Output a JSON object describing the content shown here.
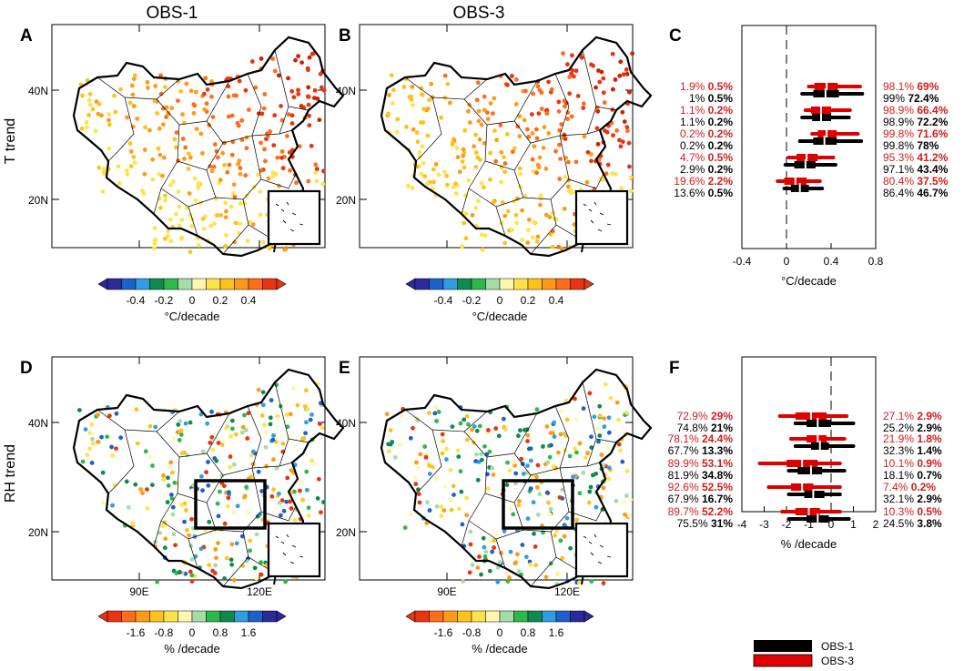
{
  "panel_titles": {
    "obs1": "OBS-1",
    "obs3": "OBS-3"
  },
  "panel_labels": {
    "A": "A",
    "B": "B",
    "C": "C",
    "D": "D",
    "E": "E",
    "F": "F"
  },
  "row_labels": {
    "t": "T trend",
    "rh": "RH trend"
  },
  "map_ticks": {
    "lat40": "40N",
    "lat20": "20N",
    "lon90": "90E",
    "lon120": "120E"
  },
  "colorbar_t": {
    "ticks": [
      "-0.4",
      "-0.2",
      "0",
      "0.2",
      "0.4"
    ],
    "unit": "°C/decade",
    "colors": [
      "#2a2a9a",
      "#1f5fc9",
      "#2f9de0",
      "#0f8a4f",
      "#2db84a",
      "#a5dcaa",
      "#fff7b0",
      "#ffe34a",
      "#ffc21a",
      "#ff9a18",
      "#ff6d1a",
      "#e8350f"
    ]
  },
  "colorbar_rh": {
    "ticks": [
      "-1.6",
      "-0.8",
      "0",
      "0.8",
      "1.6"
    ],
    "unit": "% /decade",
    "colors": [
      "#e8350f",
      "#ff6d1a",
      "#ff9a18",
      "#ffc21a",
      "#ffe34a",
      "#fff7b0",
      "#a5dcaa",
      "#2db84a",
      "#0f8a4f",
      "#2f9de0",
      "#1f5fc9",
      "#2a2a9a"
    ]
  },
  "legend": {
    "obs1": "OBS-1",
    "obs3": "OBS-3",
    "obs1_color": "#000000",
    "obs3_color": "#e00000"
  },
  "chart_data": [
    {
      "panel": "C",
      "type": "interval",
      "xlabel": "°C/decade",
      "xlim": [
        -0.4,
        0.8
      ],
      "xticks": [
        "-0.4",
        "0",
        "0.4",
        "0.8"
      ],
      "series": [
        {
          "name": "OBS-3",
          "color": "#e00000",
          "boxes": [
            {
              "whisker": [
                0.2,
                0.66
              ],
              "box": [
                0.25,
                0.46
              ],
              "median": 0.36
            },
            {
              "whisker": [
                0.17,
                0.57
              ],
              "box": [
                0.22,
                0.4
              ],
              "median": 0.31
            },
            {
              "whisker": [
                0.23,
                0.64
              ],
              "box": [
                0.28,
                0.45
              ],
              "median": 0.36
            },
            {
              "whisker": [
                0.02,
                0.42
              ],
              "box": [
                0.09,
                0.28
              ],
              "median": 0.18
            },
            {
              "whisker": [
                -0.08,
                0.3
              ],
              "box": [
                -0.02,
                0.18
              ],
              "median": 0.08
            }
          ]
        },
        {
          "name": "OBS-1",
          "color": "#000000",
          "boxes": [
            {
              "whisker": [
                0.14,
                0.68
              ],
              "box": [
                0.24,
                0.47
              ],
              "median": 0.35
            },
            {
              "whisker": [
                0.14,
                0.56
              ],
              "box": [
                0.23,
                0.4
              ],
              "median": 0.31
            },
            {
              "whisker": [
                0.12,
                0.67
              ],
              "box": [
                0.24,
                0.45
              ],
              "median": 0.34
            },
            {
              "whisker": [
                -0.01,
                0.44
              ],
              "box": [
                0.07,
                0.26
              ],
              "median": 0.17
            },
            {
              "whisker": [
                -0.02,
                0.32
              ],
              "box": [
                0.04,
                0.2
              ],
              "median": 0.12
            }
          ]
        }
      ],
      "left_labels": [
        {
          "red_a": "1.9%",
          "red_b": "0.5%",
          "black_a": "1%",
          "black_b": "0.5%"
        },
        {
          "red_a": "1.1%",
          "red_b": "0.2%",
          "black_a": "1.1%",
          "black_b": "0.2%"
        },
        {
          "red_a": "0.2%",
          "red_b": "0.2%",
          "black_a": "0.2%",
          "black_b": "0.2%"
        },
        {
          "red_a": "4.7%",
          "red_b": "0.5%",
          "black_a": "2.9%",
          "black_b": "0.2%"
        },
        {
          "red_a": "19.6%",
          "red_b": "2.2%",
          "black_a": "13.6%",
          "black_b": "0.5%"
        }
      ],
      "right_labels": [
        {
          "red_a": "98.1%",
          "red_b": "69%",
          "black_a": "99%",
          "black_b": "72.4%"
        },
        {
          "red_a": "98.9%",
          "red_b": "66.4%",
          "black_a": "98.9%",
          "black_b": "72.2%"
        },
        {
          "red_a": "99.8%",
          "red_b": "71.6%",
          "black_a": "99.8%",
          "black_b": "78%"
        },
        {
          "red_a": "95.3%",
          "red_b": "41.2%",
          "black_a": "97.1%",
          "black_b": "43.4%"
        },
        {
          "red_a": "80.4%",
          "red_b": "37.5%",
          "black_a": "86.4%",
          "black_b": "46.7%"
        }
      ]
    },
    {
      "panel": "F",
      "type": "interval",
      "xlabel": "% /decade",
      "xlim": [
        -4,
        2
      ],
      "xticks": [
        "-4",
        "-3",
        "-2",
        "-1",
        "0",
        "1",
        "2"
      ],
      "series": [
        {
          "name": "OBS-3",
          "color": "#e00000",
          "boxes": [
            {
              "whisker": [
                -2.3,
                0.7
              ],
              "box": [
                -1.6,
                -0.2
              ],
              "median": -0.9
            },
            {
              "whisker": [
                -1.8,
                0.6
              ],
              "box": [
                -1.1,
                -0.2
              ],
              "median": -0.6
            },
            {
              "whisker": [
                -3.2,
                0.4
              ],
              "box": [
                -2.0,
                -0.6
              ],
              "median": -1.3
            },
            {
              "whisker": [
                -2.8,
                0.4
              ],
              "box": [
                -1.8,
                -0.8
              ],
              "median": -1.3
            },
            {
              "whisker": [
                -2.2,
                0.4
              ],
              "box": [
                -1.6,
                -0.5
              ],
              "median": -1.0
            }
          ]
        },
        {
          "name": "OBS-1",
          "color": "#000000",
          "boxes": [
            {
              "whisker": [
                -1.6,
                1.0
              ],
              "box": [
                -1.1,
                0.0
              ],
              "median": -0.6
            },
            {
              "whisker": [
                -1.6,
                1.0
              ],
              "box": [
                -0.9,
                -0.1
              ],
              "median": -0.5
            },
            {
              "whisker": [
                -1.9,
                0.6
              ],
              "box": [
                -1.5,
                -0.4
              ],
              "median": -0.9
            },
            {
              "whisker": [
                -1.9,
                0.4
              ],
              "box": [
                -1.2,
                -0.3
              ],
              "median": -0.8
            },
            {
              "whisker": [
                -1.9,
                0.8
              ],
              "box": [
                -1.1,
                -0.1
              ],
              "median": -0.6
            }
          ]
        }
      ],
      "left_labels": [
        {
          "red_a": "72.9%",
          "red_b": "29%",
          "black_a": "74.8%",
          "black_b": "21%"
        },
        {
          "red_a": "78.1%",
          "red_b": "24.4%",
          "black_a": "67.7%",
          "black_b": "13.3%"
        },
        {
          "red_a": "89.9%",
          "red_b": "53.1%",
          "black_a": "81.9%",
          "black_b": "34.8%"
        },
        {
          "red_a": "92.6%",
          "red_b": "52.5%",
          "black_a": "67.9%",
          "black_b": "16.7%"
        },
        {
          "red_a": "89.7%",
          "red_b": "52.2%",
          "black_a": "75.5%",
          "black_b": "31%"
        }
      ],
      "right_labels": [
        {
          "red_a": "27.1%",
          "red_b": "2.9%",
          "black_a": "25.2%",
          "black_b": "2.9%"
        },
        {
          "red_a": "21.9%",
          "red_b": "1.8%",
          "black_a": "32.3%",
          "black_b": "1.4%"
        },
        {
          "red_a": "10.1%",
          "red_b": "0.9%",
          "black_a": "18.1%",
          "black_b": "0.7%"
        },
        {
          "red_a": "7.4%",
          "red_b": "0.2%",
          "black_a": "32.1%",
          "black_b": "2.9%"
        },
        {
          "red_a": "10.3%",
          "red_b": "0.5%",
          "black_a": "24.5%",
          "black_b": "3.8%"
        }
      ]
    }
  ]
}
